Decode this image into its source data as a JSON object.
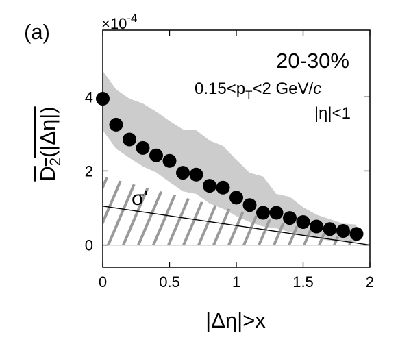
{
  "panel_label": "(a)",
  "exponent_label": "×10",
  "exponent_power": "-4",
  "chart_data": {
    "type": "scatter",
    "annotations": {
      "centrality": "20-30%",
      "pt_prefix": "0.15<p",
      "pt_sub": "T",
      "pt_suffix": "<2 GeV/",
      "pt_c": "c",
      "eta": "|η|<1",
      "sigma": "σ'"
    },
    "xlabel": "|Δη|>x",
    "ylabel_main": "D",
    "ylabel_sub": "2",
    "ylabel_rest": "(|Δη|)",
    "xlim": [
      0,
      2
    ],
    "ylim": [
      -0.6,
      5.8
    ],
    "xticks": [
      0,
      0.5,
      1,
      1.5,
      2
    ],
    "xtick_labels": [
      "0",
      "0.5",
      "1",
      "1.5",
      "2"
    ],
    "yticks": [
      0,
      2,
      4
    ],
    "ytick_labels": [
      "0",
      "2",
      "4"
    ],
    "series": [
      {
        "x": [
          0.0,
          0.1,
          0.2,
          0.3,
          0.4,
          0.5,
          0.6,
          0.7,
          0.8,
          0.9,
          1.0,
          1.1,
          1.2,
          1.3,
          1.4,
          1.5,
          1.6,
          1.7,
          1.8,
          1.9
        ],
        "y": [
          3.95,
          3.25,
          2.85,
          2.62,
          2.42,
          2.27,
          1.95,
          1.9,
          1.6,
          1.55,
          1.28,
          1.08,
          0.87,
          0.87,
          0.73,
          0.62,
          0.5,
          0.43,
          0.38,
          0.3
        ]
      }
    ],
    "systematic_band": {
      "x": [
        0.0,
        0.1,
        0.2,
        0.3,
        0.4,
        0.5,
        0.6,
        0.7,
        0.8,
        0.9,
        1.0,
        1.1,
        1.2,
        1.3,
        1.4,
        1.5,
        1.6,
        1.7,
        1.8,
        1.9
      ],
      "upper": [
        4.7,
        4.2,
        3.95,
        3.82,
        3.6,
        3.35,
        3.12,
        3.1,
        2.82,
        2.68,
        2.3,
        1.95,
        1.85,
        1.38,
        1.3,
        1.02,
        0.82,
        0.7,
        0.58,
        0.55
      ],
      "lower": [
        3.1,
        2.6,
        2.35,
        2.12,
        1.96,
        1.7,
        1.45,
        1.38,
        1.12,
        0.98,
        0.78,
        0.62,
        0.5,
        0.45,
        0.35,
        0.25,
        0.18,
        0.12,
        0.1,
        0.08
      ]
    },
    "sigma_line": {
      "x": [
        0,
        2
      ],
      "y": [
        1.05,
        0.0
      ]
    },
    "sigma_band_upper_x": [
      0,
      2
    ],
    "sigma_band_upper_y": [
      1.85,
      0.0
    ],
    "colors": {
      "band": "#cccccc",
      "hatch": "#9a9a9a",
      "marker": "#000000"
    }
  }
}
